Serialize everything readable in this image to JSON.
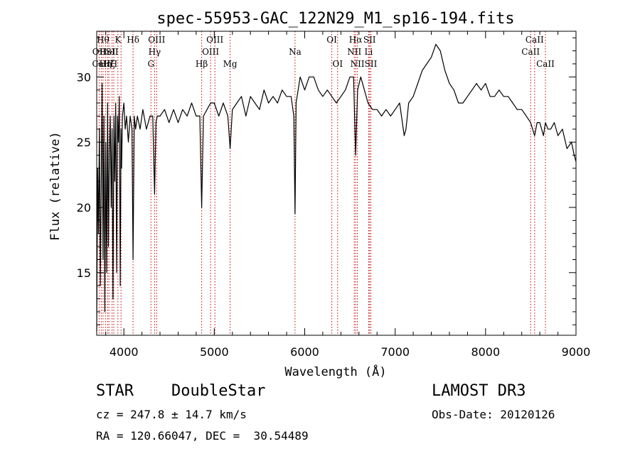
{
  "chart_data": {
    "type": "line",
    "title": "spec-55953-GAC_122N29_M1_sp16-194.fits",
    "xlabel": "Wavelength (Å)",
    "ylabel": "Flux (relative)",
    "xlim": [
      3700,
      9000
    ],
    "ylim": [
      10.2,
      33.5
    ],
    "xticks": [
      4000,
      5000,
      6000,
      7000,
      8000,
      9000
    ],
    "yticks": [
      15,
      20,
      25,
      30
    ],
    "spectrum": {
      "x": [
        3700,
        3710,
        3720,
        3730,
        3740,
        3750,
        3760,
        3770,
        3780,
        3790,
        3800,
        3810,
        3820,
        3830,
        3840,
        3850,
        3860,
        3870,
        3880,
        3890,
        3900,
        3910,
        3920,
        3930,
        3940,
        3950,
        3960,
        3968,
        3975,
        3985,
        4000,
        4015,
        4030,
        4050,
        4070,
        4090,
        4102,
        4115,
        4130,
        4150,
        4180,
        4210,
        4250,
        4290,
        4320,
        4340,
        4355,
        4370,
        4400,
        4450,
        4500,
        4550,
        4600,
        4650,
        4700,
        4750,
        4800,
        4840,
        4861,
        4880,
        4920,
        4960,
        5000,
        5050,
        5100,
        5150,
        5175,
        5200,
        5250,
        5300,
        5350,
        5400,
        5450,
        5500,
        5550,
        5600,
        5650,
        5700,
        5750,
        5800,
        5850,
        5880,
        5893,
        5905,
        5950,
        6000,
        6050,
        6100,
        6150,
        6200,
        6250,
        6300,
        6350,
        6400,
        6450,
        6500,
        6540,
        6563,
        6585,
        6620,
        6660,
        6700,
        6750,
        6800,
        6850,
        6900,
        6950,
        7000,
        7050,
        7100,
        7120,
        7150,
        7200,
        7250,
        7300,
        7350,
        7400,
        7450,
        7500,
        7550,
        7600,
        7650,
        7700,
        7750,
        7800,
        7850,
        7900,
        7950,
        8000,
        8050,
        8100,
        8150,
        8200,
        8250,
        8300,
        8350,
        8400,
        8450,
        8498,
        8520,
        8542,
        8570,
        8600,
        8640,
        8662,
        8690,
        8720,
        8760,
        8800,
        8850,
        8900,
        8950,
        8980,
        9000
      ],
      "y": [
        10.5,
        23,
        18,
        26,
        14,
        22,
        29.5,
        16,
        27,
        12,
        25,
        15,
        28,
        17,
        24,
        27,
        20,
        26,
        13,
        27,
        22,
        28,
        15,
        27,
        25,
        28.5,
        14,
        26,
        23,
        27,
        28,
        26,
        27,
        25,
        27,
        26,
        16,
        27,
        26,
        27,
        26,
        27.5,
        26,
        27,
        27,
        21,
        26.5,
        27,
        27,
        27.5,
        26.5,
        27.5,
        26.5,
        27.5,
        27,
        28,
        27,
        27,
        20,
        27,
        27.5,
        28,
        28,
        27,
        28,
        27,
        24.5,
        27.5,
        28,
        28.5,
        27,
        28.5,
        28,
        27.5,
        29,
        28,
        28.5,
        28,
        29,
        28.5,
        28.5,
        27,
        19.5,
        28,
        30,
        29,
        30,
        30,
        29,
        28.5,
        29,
        28.5,
        28,
        28.5,
        29,
        30,
        30,
        24,
        29,
        30,
        29,
        28,
        27.5,
        27.5,
        27,
        27.5,
        27,
        27.5,
        28,
        25.5,
        26,
        28,
        28.5,
        29.5,
        30.5,
        31,
        31.5,
        32.5,
        32,
        30.5,
        29.5,
        29,
        28,
        28,
        28.5,
        29,
        29.5,
        29,
        29.5,
        28.5,
        28.5,
        29,
        28.5,
        28.5,
        28,
        27.5,
        27.5,
        27,
        26.5,
        26,
        25.5,
        26.5,
        26.5,
        25.5,
        26.5,
        26,
        26,
        26.5,
        25.5,
        26,
        24.5,
        25,
        24,
        23.5
      ]
    },
    "line_markers": [
      {
        "wl": 3727,
        "label": "OII",
        "row": 1
      },
      {
        "wl": 3750,
        "label": "CaII",
        "row": 2
      },
      {
        "wl": 3770,
        "label": "Hθ",
        "row": 0
      },
      {
        "wl": 3797,
        "label": "Hη",
        "row": 2
      },
      {
        "wl": 3820,
        "label": "HeI",
        "row": 1
      },
      {
        "wl": 3835,
        "label": "Hζ",
        "row": 2
      },
      {
        "wl": 3870,
        "label": "SII",
        "row": 1
      },
      {
        "wl": 3889,
        "label": "H",
        "row": 2
      },
      {
        "wl": 3934,
        "label": "K",
        "row": 0
      },
      {
        "wl": 3969,
        "label": "",
        "row": -1
      },
      {
        "wl": 4102,
        "label": "Hδ",
        "row": 0
      },
      {
        "wl": 4300,
        "label": "G",
        "row": 2
      },
      {
        "wl": 4340,
        "label": "Hγ",
        "row": 1
      },
      {
        "wl": 4363,
        "label": "OIII",
        "row": 0
      },
      {
        "wl": 4861,
        "label": "Hβ",
        "row": 2
      },
      {
        "wl": 4959,
        "label": "OIII",
        "row": 1
      },
      {
        "wl": 5007,
        "label": "OIII",
        "row": 0
      },
      {
        "wl": 5175,
        "label": "Mg",
        "row": 2
      },
      {
        "wl": 5893,
        "label": "Na",
        "row": 1
      },
      {
        "wl": 6300,
        "label": "OI",
        "row": 0
      },
      {
        "wl": 6364,
        "label": "OI",
        "row": 2
      },
      {
        "wl": 6548,
        "label": "NII",
        "row": 1
      },
      {
        "wl": 6563,
        "label": "Hα",
        "row": 0
      },
      {
        "wl": 6583,
        "label": "NII",
        "row": 2
      },
      {
        "wl": 6707,
        "label": "Li",
        "row": 1
      },
      {
        "wl": 6717,
        "label": "SII",
        "row": 0
      },
      {
        "wl": 6731,
        "label": "SII",
        "row": 2
      },
      {
        "wl": 8498,
        "label": "CaII",
        "row": 1
      },
      {
        "wl": 8542,
        "label": "CaII",
        "row": 0
      },
      {
        "wl": 8662,
        "label": "CaII",
        "row": 2
      }
    ]
  },
  "info": {
    "class": "STAR",
    "subclass": "DoubleStar",
    "survey": "LAMOST DR3",
    "cz": "cz = 247.8 ± 14.7 km/s",
    "obs_date": "Obs-Date: 20120126",
    "coords": "RA = 120.66047, DEC =  30.54489"
  }
}
